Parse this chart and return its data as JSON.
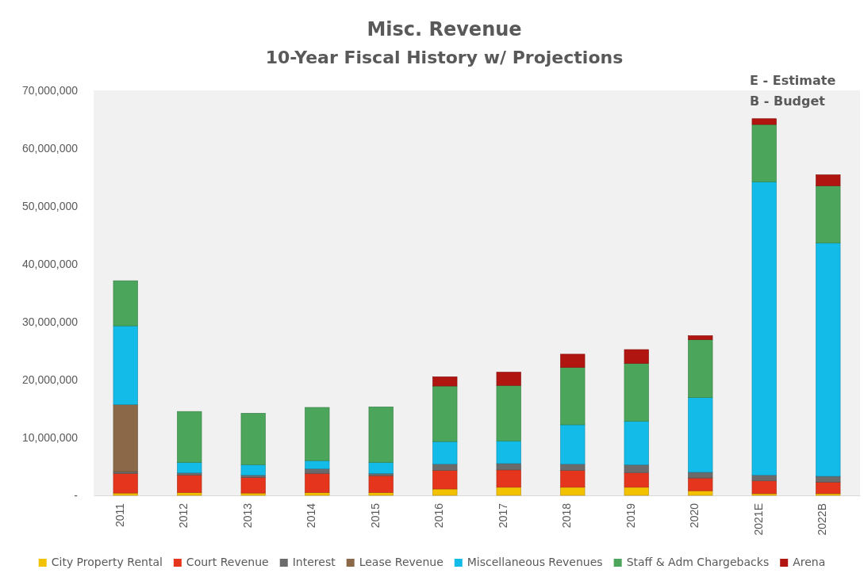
{
  "chart_data": {
    "type": "bar",
    "title": "Misc. Revenue",
    "subtitle": "10-Year Fiscal History w/ Projections",
    "stacked": true,
    "categories": [
      "2011",
      "2012",
      "2013",
      "2014",
      "2015",
      "2016",
      "2017",
      "2018",
      "2019",
      "2020",
      "2021E",
      "2022B"
    ],
    "series": [
      {
        "name": "City Property Rental",
        "color": "#f2c200",
        "values": [
          400000,
          500000,
          400000,
          500000,
          500000,
          1100000,
          1400000,
          1400000,
          1400000,
          800000,
          300000,
          300000
        ]
      },
      {
        "name": "Court Revenue",
        "color": "#e5361d",
        "values": [
          3400000,
          3000000,
          2700000,
          3300000,
          2900000,
          3200000,
          3000000,
          2900000,
          2500000,
          2200000,
          2200000,
          2000000
        ]
      },
      {
        "name": "Interest",
        "color": "#6b6b6b",
        "values": [
          300000,
          400000,
          400000,
          800000,
          400000,
          1100000,
          1100000,
          1100000,
          1400000,
          1000000,
          1000000,
          1000000
        ]
      },
      {
        "name": "Lease Revenue",
        "color": "#8a6848",
        "values": [
          11600000,
          null,
          null,
          null,
          null,
          null,
          null,
          null,
          null,
          null,
          null,
          null
        ]
      },
      {
        "name": "Miscellaneous Revenues",
        "color": "#12bbe8",
        "values": [
          13600000,
          1800000,
          1800000,
          1400000,
          1900000,
          3900000,
          3900000,
          6800000,
          7500000,
          12900000,
          50700000,
          40300000
        ]
      },
      {
        "name": "Staff & Adm Chargebacks",
        "color": "#4ba55b",
        "values": [
          7800000,
          8800000,
          8900000,
          9200000,
          9600000,
          9600000,
          9600000,
          9900000,
          10000000,
          10000000,
          9900000,
          9900000
        ]
      },
      {
        "name": "Arena",
        "color": "#b01510",
        "values": [
          null,
          null,
          null,
          null,
          null,
          1600000,
          2300000,
          2300000,
          2400000,
          700000,
          1000000,
          1900000
        ]
      }
    ],
    "ylim": [
      0,
      70000000
    ],
    "yticks": [
      {
        "value": 0,
        "label": "-"
      },
      {
        "value": 10000000,
        "label": "10,000,000"
      },
      {
        "value": 20000000,
        "label": "20,000,000"
      },
      {
        "value": 30000000,
        "label": "30,000,000"
      },
      {
        "value": 40000000,
        "label": "40,000,000"
      },
      {
        "value": 50000000,
        "label": "50,000,000"
      },
      {
        "value": 60000000,
        "label": "60,000,000"
      },
      {
        "value": 70000000,
        "label": "70,000,000"
      }
    ],
    "grid": false,
    "legend": "bottom",
    "annotations": [
      "E - Estimate",
      "B - Budget"
    ]
  }
}
